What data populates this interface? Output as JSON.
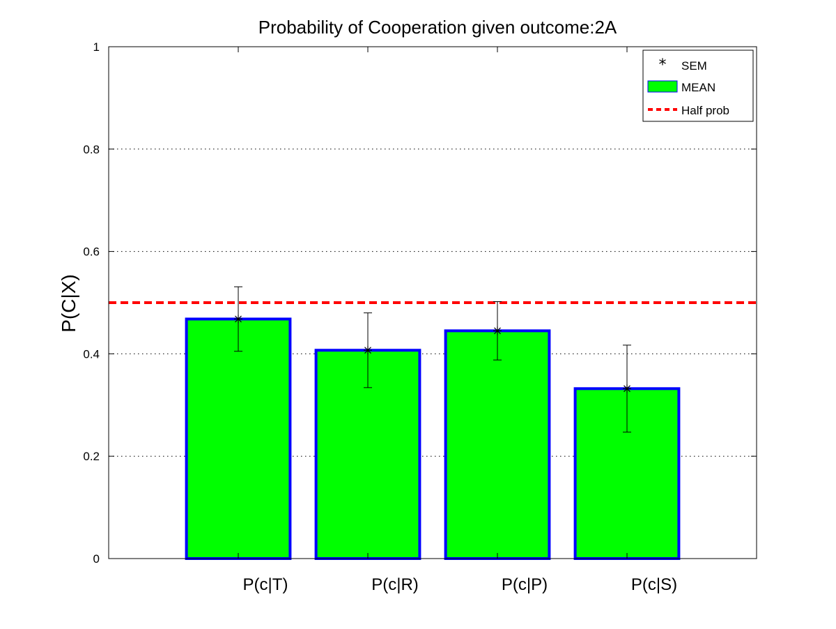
{
  "chart_data": {
    "type": "bar",
    "title": "Probability of Cooperation given outcome:2A",
    "xlabel": "",
    "ylabel": "P(C|X)",
    "categories": [
      "P(c|T)",
      "P(c|R)",
      "P(c|P)",
      "P(c|S)"
    ],
    "series": [
      {
        "name": "MEAN",
        "values": [
          0.468,
          0.407,
          0.445,
          0.332
        ],
        "color": "#00ff00",
        "edge_color": "#0000ff"
      }
    ],
    "errors": {
      "name": "SEM",
      "values": [
        0.063,
        0.073,
        0.057,
        0.085
      ]
    },
    "reference_line": {
      "name": "Half prob",
      "value": 0.5,
      "color": "#ff0000",
      "style": "dashed"
    },
    "ylim": [
      0,
      1
    ],
    "yticks": [
      0,
      0.2,
      0.4,
      0.6,
      0.8,
      1
    ],
    "ytick_labels": [
      "0",
      "0.2",
      "0.4",
      "0.6",
      "0.8",
      "1"
    ],
    "grid": "y-dotted",
    "legend": {
      "placement": "top-right",
      "entries": [
        "SEM",
        "MEAN",
        "Half prob"
      ]
    }
  }
}
